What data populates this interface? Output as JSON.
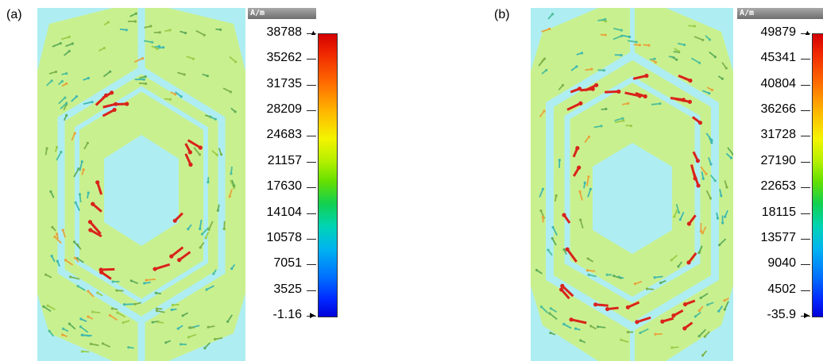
{
  "panels": [
    {
      "label": "(a)",
      "legend": {
        "unit": "A/m",
        "ticks": [
          "38788",
          "35262",
          "31735",
          "28209",
          "24683",
          "21157",
          "17630",
          "14104",
          "10578",
          "7051",
          "3525",
          "-1.16"
        ]
      },
      "colors": {
        "background": "#aeeef2",
        "fill": "#c9f08f",
        "strong": "#d9231b",
        "weak": "#7db34a",
        "mid": "#e8a33a"
      }
    },
    {
      "label": "(b)",
      "legend": {
        "unit": "A/m",
        "ticks": [
          "49879",
          "45341",
          "40804",
          "36266",
          "31728",
          "27190",
          "22653",
          "18115",
          "13577",
          "9040",
          "4502",
          "-35.9"
        ]
      },
      "colors": {
        "background": "#aeeef2",
        "fill": "#c9f08f",
        "strong": "#d9231b",
        "weak": "#7db34a",
        "mid": "#e8a33a"
      }
    }
  ]
}
